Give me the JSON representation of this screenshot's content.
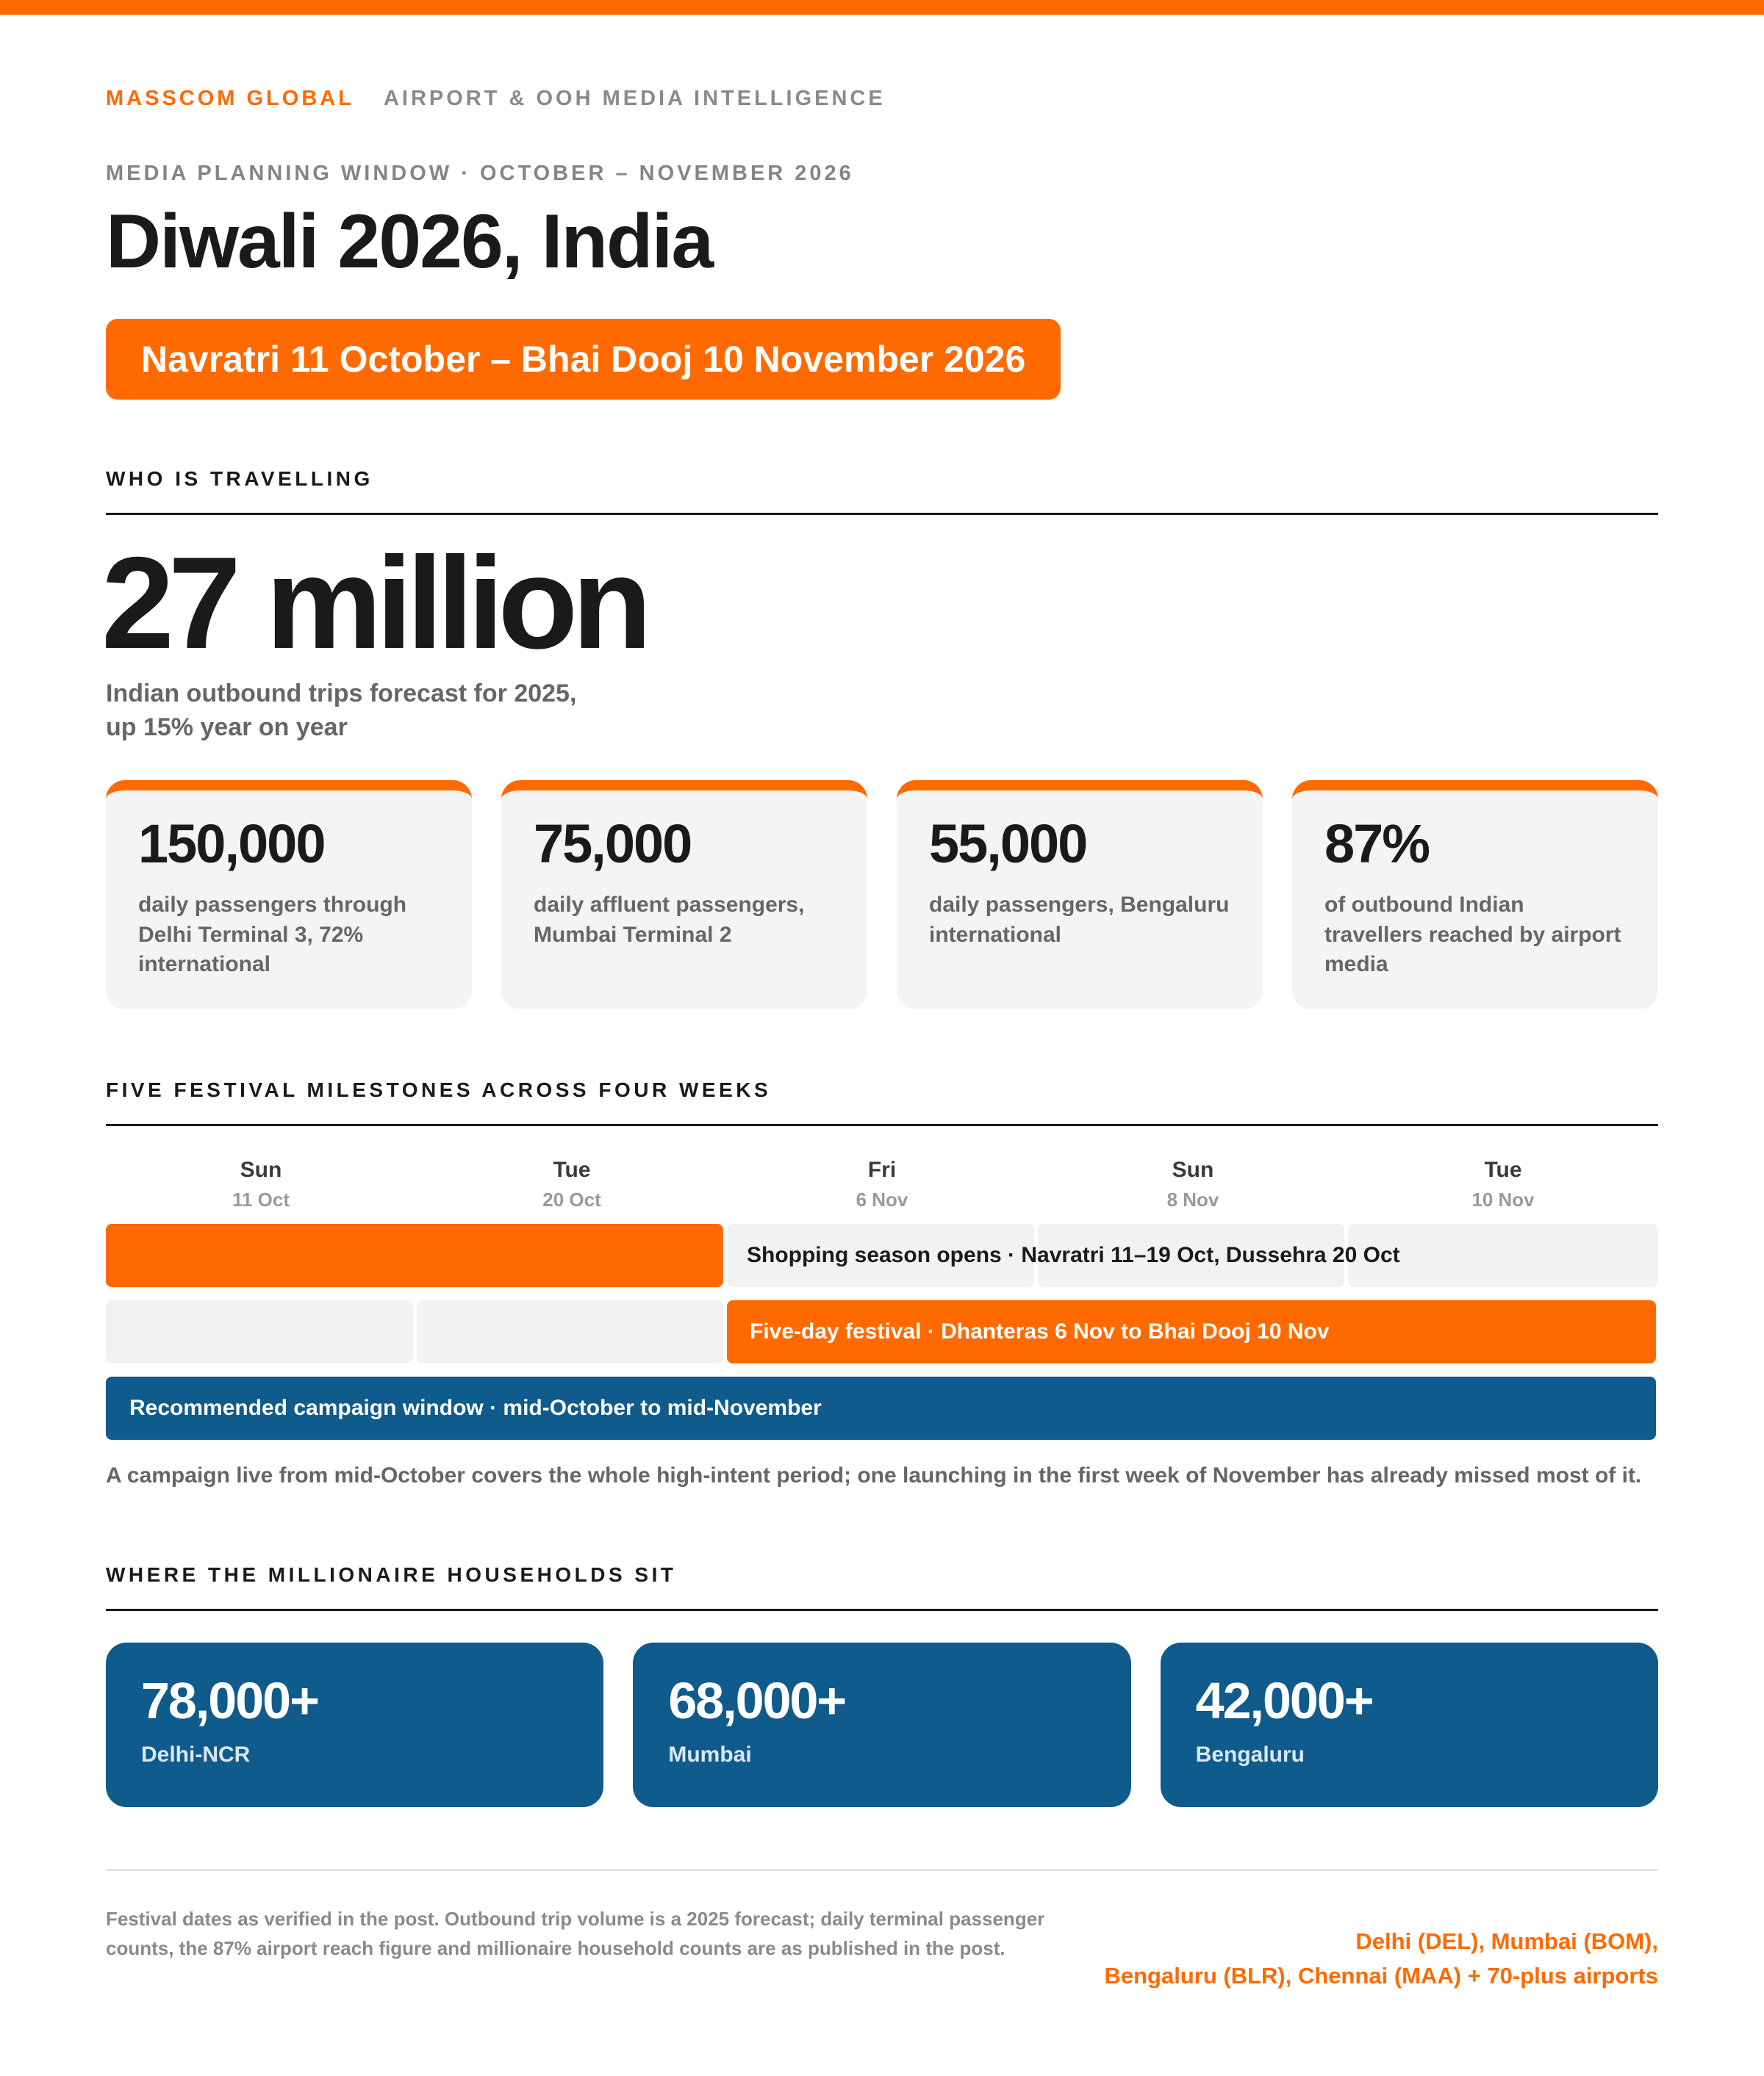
{
  "theme": {
    "accent": "#ff6a00",
    "blue": "#0f5b8b",
    "grey": "#f2f2f0"
  },
  "header": {
    "brand": "MASSCOM GLOBAL",
    "brand_sub": "AIRPORT & OOH MEDIA INTELLIGENCE",
    "kicker": "MEDIA PLANNING WINDOW · OCTOBER – NOVEMBER 2026",
    "title": "Diwali 2026, India",
    "date_range": "Navratri 11 October – Bhai Dooj 10 November 2026"
  },
  "travel": {
    "heading": "WHO IS TRAVELLING",
    "big_number": "27 million",
    "big_caption_line1": "Indian outbound trips forecast for 2025,",
    "big_caption_line2": "up 15% year on year",
    "stats": [
      {
        "value": "150,000",
        "caption": "daily passengers through Delhi Terminal 3, 72% international"
      },
      {
        "value": "75,000",
        "caption": "daily affluent passengers, Mumbai Terminal 2"
      },
      {
        "value": "55,000",
        "caption": "daily passengers, Bengaluru international"
      },
      {
        "value": "87%",
        "caption": "of outbound Indian travellers reached by airport media"
      }
    ]
  },
  "timeline": {
    "heading": "FIVE FESTIVAL MILESTONES ACROSS FOUR WEEKS",
    "days": [
      {
        "name": "Sun",
        "date": "11 Oct"
      },
      {
        "name": "Tue",
        "date": "20 Oct"
      },
      {
        "name": "Fri",
        "date": "6 Nov"
      },
      {
        "name": "Sun",
        "date": "8 Nov"
      },
      {
        "name": "Tue",
        "date": "10 Nov"
      }
    ],
    "row1_label": "Shopping season opens · Navratri 11–19 Oct, Dussehra 20 Oct",
    "row2_label": "Five-day festival · Dhanteras 6 Nov to Bhai Dooj 10 Nov",
    "row3_label": "Recommended campaign window · mid-October to mid-November",
    "note": "A campaign live from mid-October covers the whole high-intent period; one launching in the first week of November has already missed most of it."
  },
  "households": {
    "heading": "WHERE THE MILLIONAIRE HOUSEHOLDS SIT",
    "cities": [
      {
        "value": "78,000+",
        "name": "Delhi-NCR"
      },
      {
        "value": "68,000+",
        "name": "Mumbai"
      },
      {
        "value": "42,000+",
        "name": "Bengaluru"
      }
    ]
  },
  "footer": {
    "note": "Festival dates as verified in the post. Outbound trip volume is a 2025 forecast; daily terminal passenger counts, the 87% airport reach figure and millionaire household counts are as published in the post.",
    "airports_line1": "Delhi (DEL), Mumbai (BOM),",
    "airports_line2": "Bengaluru (BLR), Chennai (MAA) + 70-plus airports"
  }
}
